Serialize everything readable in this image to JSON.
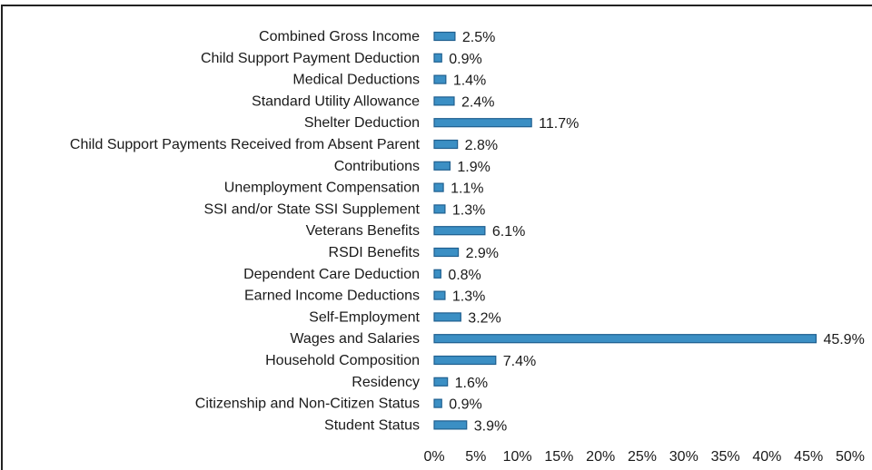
{
  "chart_data": {
    "type": "bar",
    "orientation": "horizontal",
    "categories": [
      "Combined Gross Income",
      "Child Support Payment Deduction",
      "Medical Deductions",
      "Standard Utility Allowance",
      "Shelter Deduction",
      "Child Support Payments Received from Absent Parent",
      "Contributions",
      "Unemployment Compensation",
      "SSI and/or State SSI Supplement",
      "Veterans Benefits",
      "RSDI Benefits",
      "Dependent Care Deduction",
      "Earned Income Deductions",
      "Self-Employment",
      "Wages and Salaries",
      "Household Composition",
      "Residency",
      "Citizenship and Non-Citizen Status",
      "Student Status"
    ],
    "values": [
      2.5,
      0.9,
      1.4,
      2.4,
      11.7,
      2.8,
      1.9,
      1.1,
      1.3,
      6.1,
      2.9,
      0.8,
      1.3,
      3.2,
      45.9,
      7.4,
      1.6,
      0.9,
      3.9
    ],
    "data_labels": [
      "2.5%",
      "0.9%",
      "1.4%",
      "2.4%",
      "11.7%",
      "2.8%",
      "1.9%",
      "1.1%",
      "1.3%",
      "6.1%",
      "2.9%",
      "0.8%",
      "1.3%",
      "3.2%",
      "45.9%",
      "7.4%",
      "1.6%",
      "0.9%",
      "3.9%"
    ],
    "x_ticks": [
      "0%",
      "5%",
      "10%",
      "15%",
      "20%",
      "25%",
      "30%",
      "35%",
      "40%",
      "45%",
      "50%"
    ],
    "xlim": [
      0,
      50
    ],
    "title": "",
    "xlabel": "",
    "ylabel": "",
    "grid": false,
    "legend": "none",
    "bar_color": "#3b8fc4",
    "bar_edge_color": "#1f5f8f"
  }
}
